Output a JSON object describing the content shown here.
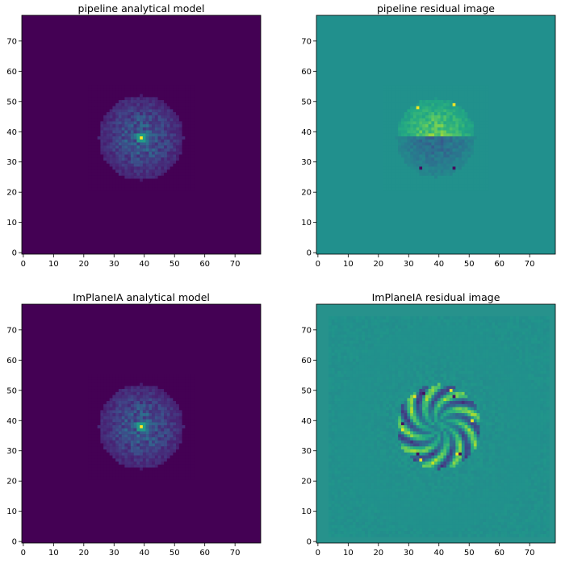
{
  "chart_data": [
    {
      "type": "heatmap",
      "title": "pipeline analytical model",
      "colormap": "viridis",
      "background_color": "#440154",
      "xlim": [
        0,
        79
      ],
      "ylim": [
        0,
        79
      ],
      "xticks": [
        "0",
        "10",
        "20",
        "30",
        "40",
        "50",
        "60",
        "70"
      ],
      "yticks": [
        "0",
        "10",
        "20",
        "30",
        "40",
        "50",
        "60",
        "70"
      ],
      "pattern": "psf",
      "center": [
        39,
        38
      ],
      "disk_radius": 13,
      "peak": {
        "x": 39,
        "y": 38,
        "value": 1.0
      }
    },
    {
      "type": "heatmap",
      "title": "pipeline residual image",
      "colormap": "viridis",
      "background_color": "#21908d",
      "xlim": [
        0,
        79
      ],
      "ylim": [
        0,
        79
      ],
      "xticks": [
        "0",
        "10",
        "20",
        "30",
        "40",
        "50",
        "60",
        "70"
      ],
      "yticks": [
        "0",
        "10",
        "20",
        "30",
        "40",
        "50",
        "60",
        "70"
      ],
      "pattern": "split",
      "center": [
        39,
        38
      ],
      "disk_radius": 13,
      "hot_spots": [
        [
          33,
          48
        ],
        [
          45,
          49
        ]
      ],
      "cold_spots": [
        [
          34,
          28
        ],
        [
          45,
          28
        ]
      ]
    },
    {
      "type": "heatmap",
      "title": "ImPlaneIA analytical model",
      "colormap": "viridis",
      "background_color": "#440154",
      "xlim": [
        0,
        79
      ],
      "ylim": [
        0,
        79
      ],
      "xticks": [
        "0",
        "10",
        "20",
        "30",
        "40",
        "50",
        "60",
        "70"
      ],
      "yticks": [
        "0",
        "10",
        "20",
        "30",
        "40",
        "50",
        "60",
        "70"
      ],
      "pattern": "psf",
      "center": [
        39,
        38
      ],
      "disk_radius": 13,
      "peak": {
        "x": 39,
        "y": 38,
        "value": 1.0
      }
    },
    {
      "type": "heatmap",
      "title": "ImPlaneIA residual image",
      "colormap": "viridis",
      "background_color": "#27928c",
      "xlim": [
        0,
        79
      ],
      "ylim": [
        0,
        79
      ],
      "xticks": [
        "0",
        "10",
        "20",
        "30",
        "40",
        "50",
        "60",
        "70"
      ],
      "yticks": [
        "0",
        "10",
        "20",
        "30",
        "40",
        "50",
        "60",
        "70"
      ],
      "pattern": "ring",
      "center": [
        40,
        38
      ],
      "disk_radius": 14,
      "hot_spots": [
        [
          32,
          48
        ],
        [
          44,
          50
        ],
        [
          51,
          40
        ],
        [
          28,
          37
        ],
        [
          34,
          27
        ],
        [
          46,
          29
        ]
      ],
      "cold_spots": [
        [
          45,
          48
        ],
        [
          33,
          29
        ],
        [
          28,
          39
        ],
        [
          47,
          29
        ],
        [
          35,
          49
        ]
      ]
    }
  ]
}
